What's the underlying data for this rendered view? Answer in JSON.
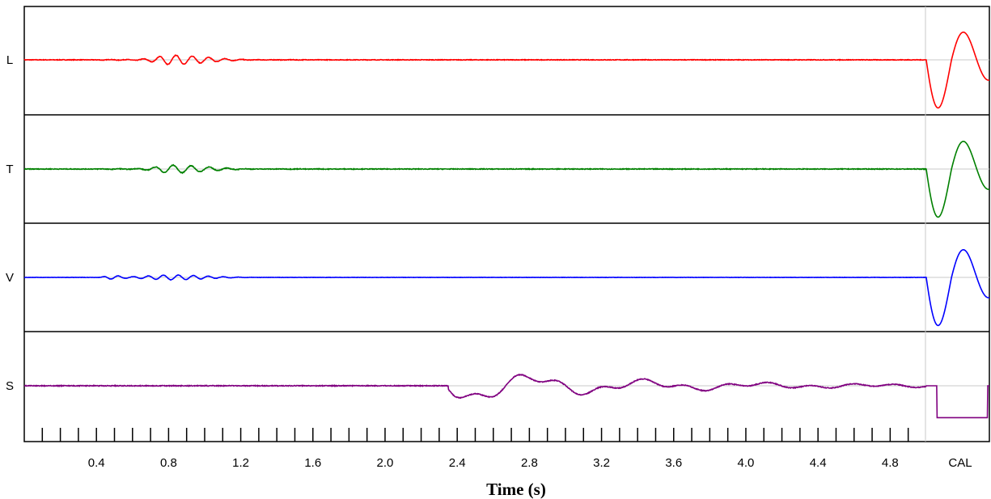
{
  "chart_data": {
    "type": "line",
    "xlabel": "Time (s)",
    "xlim": [
      0,
      5.35
    ],
    "x_tick_labels": [
      "0.4",
      "0.8",
      "1.2",
      "1.6",
      "2.0",
      "2.4",
      "2.8",
      "3.2",
      "3.6",
      "4.0",
      "4.4",
      "4.8"
    ],
    "cal_label": "CAL",
    "cal_start": 5.0,
    "grid": "vertical line at CAL start and horizontal baselines",
    "colors": {
      "L": "#ff0000",
      "T": "#008000",
      "V": "#0000ff",
      "S": "#800080"
    },
    "series": [
      {
        "name": "L",
        "label": "L"
      },
      {
        "name": "T",
        "label": "T"
      },
      {
        "name": "V",
        "label": "V"
      },
      {
        "name": "S",
        "label": "S"
      }
    ]
  }
}
